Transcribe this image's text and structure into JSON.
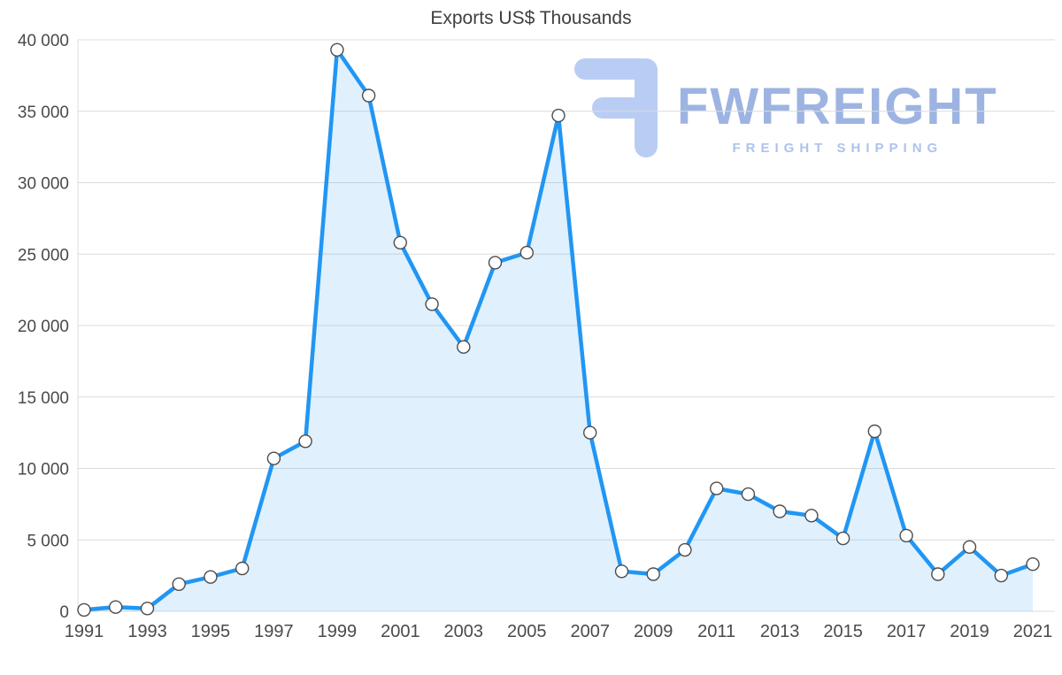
{
  "page": {
    "background": "#ffffff"
  },
  "watermark": {
    "brand": "FWFREIGHT",
    "tagline": "FREIGHT SHIPPING",
    "brand_color": "#9db4e2",
    "tagline_color": "#afc2ec",
    "logo_color": "#b9cdf4"
  },
  "chart_data": {
    "type": "area",
    "title": "Exports US$ Thousands",
    "xlabel": "",
    "ylabel": "",
    "series_name": "Exports US$ Thousands",
    "x": [
      1991,
      1992,
      1993,
      1994,
      1995,
      1996,
      1997,
      1998,
      1999,
      2000,
      2001,
      2002,
      2003,
      2004,
      2005,
      2006,
      2007,
      2008,
      2009,
      2010,
      2011,
      2012,
      2013,
      2014,
      2015,
      2016,
      2017,
      2018,
      2019,
      2020,
      2021
    ],
    "values": [
      100,
      300,
      200,
      1900,
      2400,
      3000,
      10700,
      11900,
      39300,
      36100,
      25800,
      21500,
      18500,
      24400,
      25100,
      34700,
      12500,
      2800,
      2600,
      4300,
      8600,
      8200,
      7000,
      6700,
      5100,
      12600,
      5300,
      2600,
      4500,
      2500,
      3300
    ],
    "ylim": [
      0,
      40000
    ],
    "ytick_values": [
      0,
      5000,
      10000,
      15000,
      20000,
      25000,
      30000,
      35000,
      40000
    ],
    "ytick_labels": [
      "0",
      "5 000",
      "10 000",
      "15 000",
      "20 000",
      "25 000",
      "30 000",
      "35 000",
      "40 000"
    ],
    "xtick_labels": [
      "1991",
      "1993",
      "1995",
      "1997",
      "1999",
      "2001",
      "2003",
      "2005",
      "2007",
      "2009",
      "2011",
      "2013",
      "2015",
      "2017",
      "2019",
      "2021"
    ],
    "grid": true,
    "legend": "none",
    "markers": "circle",
    "colors": {
      "line": "#2196f3",
      "fill": "#2196f3",
      "fill_opacity": 0.14,
      "marker_fill": "#ffffff",
      "marker_stroke": "#4d4d4d",
      "grid": "#dcdcdc",
      "axis_text": "#4a4a4a",
      "title_text": "#3f3f3f"
    }
  }
}
